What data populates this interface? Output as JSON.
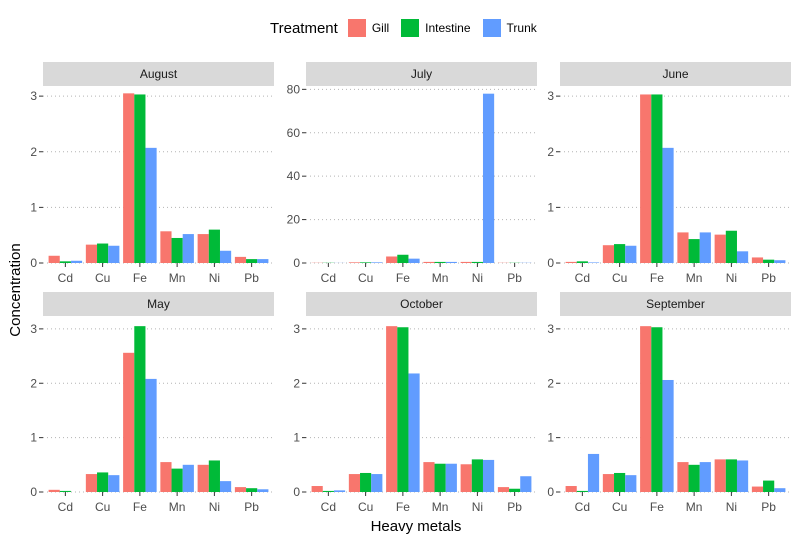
{
  "chart_data": {
    "type": "bar",
    "legend": {
      "title": "Treatment",
      "placement": "top",
      "items": [
        {
          "name": "Gill",
          "color": "#F8766D"
        },
        {
          "name": "Intestine",
          "color": "#00BA38"
        },
        {
          "name": "Trunk",
          "color": "#619CFF"
        }
      ]
    },
    "xlabel": "Heavy metals",
    "ylabel": "Concentration",
    "categories": [
      "Cd",
      "Cu",
      "Fe",
      "Mn",
      "Ni",
      "Pb"
    ],
    "grid": "dotted horizontal",
    "panels": [
      {
        "title": "August",
        "ylim": [
          0,
          3.2
        ],
        "yticks": [
          0,
          1,
          2,
          3
        ],
        "series": [
          {
            "name": "Gill",
            "values": [
              0.13,
              0.33,
              3.05,
              0.57,
              0.52,
              0.11
            ]
          },
          {
            "name": "Intestine",
            "values": [
              0.03,
              0.35,
              3.03,
              0.45,
              0.6,
              0.07
            ]
          },
          {
            "name": "Trunk",
            "values": [
              0.04,
              0.31,
              2.07,
              0.52,
              0.22,
              0.07
            ]
          }
        ]
      },
      {
        "title": "July",
        "ylim": [
          0,
          82
        ],
        "yticks": [
          0,
          20,
          40,
          60,
          80
        ],
        "series": [
          {
            "name": "Gill",
            "values": [
              0.1,
              0.3,
              3.0,
              0.5,
              0.5,
              0.1
            ]
          },
          {
            "name": "Intestine",
            "values": [
              0.1,
              0.3,
              3.8,
              0.5,
              0.5,
              0.1
            ]
          },
          {
            "name": "Trunk",
            "values": [
              0.05,
              0.3,
              2.0,
              0.5,
              78.0,
              0.1
            ]
          }
        ]
      },
      {
        "title": "June",
        "ylim": [
          0,
          3.2
        ],
        "yticks": [
          0,
          1,
          2,
          3
        ],
        "series": [
          {
            "name": "Gill",
            "values": [
              0.02,
              0.32,
              3.03,
              0.55,
              0.51,
              0.1
            ]
          },
          {
            "name": "Intestine",
            "values": [
              0.03,
              0.34,
              3.03,
              0.43,
              0.58,
              0.06
            ]
          },
          {
            "name": "Trunk",
            "values": [
              0.01,
              0.31,
              2.07,
              0.55,
              0.21,
              0.05
            ]
          }
        ]
      },
      {
        "title": "May",
        "ylim": [
          0,
          3.2
        ],
        "yticks": [
          0,
          1,
          2,
          3
        ],
        "series": [
          {
            "name": "Gill",
            "values": [
              0.04,
              0.33,
              2.56,
              0.55,
              0.5,
              0.09
            ]
          },
          {
            "name": "Intestine",
            "values": [
              0.02,
              0.36,
              3.05,
              0.43,
              0.58,
              0.07
            ]
          },
          {
            "name": "Trunk",
            "values": [
              0.0,
              0.31,
              2.08,
              0.5,
              0.2,
              0.05
            ]
          }
        ]
      },
      {
        "title": "October",
        "ylim": [
          0,
          3.2
        ],
        "yticks": [
          0,
          1,
          2,
          3
        ],
        "series": [
          {
            "name": "Gill",
            "values": [
              0.11,
              0.33,
              3.05,
              0.55,
              0.51,
              0.09
            ]
          },
          {
            "name": "Intestine",
            "values": [
              0.02,
              0.35,
              3.03,
              0.52,
              0.6,
              0.06
            ]
          },
          {
            "name": "Trunk",
            "values": [
              0.03,
              0.33,
              2.18,
              0.52,
              0.59,
              0.29
            ]
          }
        ]
      },
      {
        "title": "September",
        "ylim": [
          0,
          3.2
        ],
        "yticks": [
          0,
          1,
          2,
          3
        ],
        "series": [
          {
            "name": "Gill",
            "values": [
              0.11,
              0.33,
              3.05,
              0.55,
              0.6,
              0.1
            ]
          },
          {
            "name": "Intestine",
            "values": [
              0.02,
              0.35,
              3.03,
              0.5,
              0.6,
              0.21
            ]
          },
          {
            "name": "Trunk",
            "values": [
              0.7,
              0.31,
              2.06,
              0.55,
              0.58,
              0.07
            ]
          }
        ]
      }
    ]
  }
}
